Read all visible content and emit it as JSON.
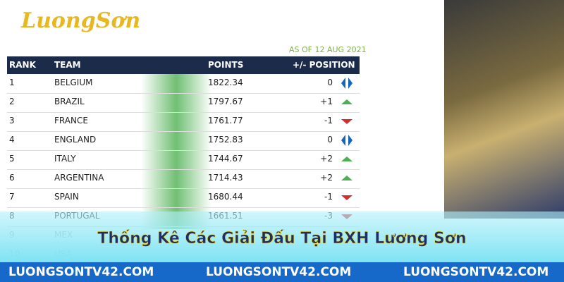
{
  "logo": "LuongSơn",
  "table": {
    "as_of": "AS OF 12 AUG 2021",
    "headers": [
      "RANK",
      "TEAM",
      "POINTS",
      "+/- POSITION"
    ],
    "rows": [
      [
        "1",
        "BELGIUM",
        "1822.34",
        "0"
      ],
      [
        "2",
        "BRAZIL",
        "1797.67",
        "+1"
      ],
      [
        "3",
        "FRANCE",
        "1761.77",
        "-1"
      ],
      [
        "4",
        "ENGLAND",
        "1752.83",
        "0"
      ],
      [
        "5",
        "ITALY",
        "1744.67",
        "+2"
      ],
      [
        "6",
        "ARGENTINA",
        "1714.43",
        "+2"
      ],
      [
        "7",
        "SPAIN",
        "1680.44",
        "-1"
      ],
      [
        "8",
        "PORTUGAL",
        "1661.51",
        "-3"
      ],
      [
        "9",
        "MEX"
      ],
      [
        "10",
        "USA"
      ]
    ]
  },
  "banner": "Thống Kê Các Giải Đấu Tại BXH Lương Sơn",
  "footer": [
    "LUONGSONTV42.COM",
    "LUONGSONTV42.COM",
    "LUONGSONTV42.COM"
  ]
}
